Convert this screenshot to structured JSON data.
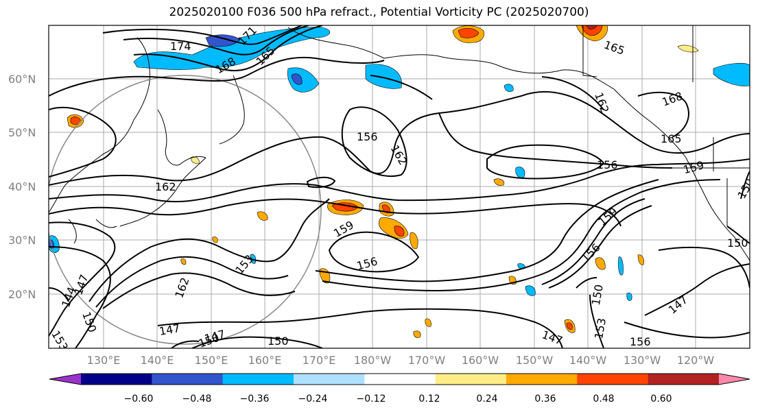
{
  "title": "2025020100 F036 500 hPa refract., Potential Vorticity PC (2025020700)",
  "lat_labels": [
    "60°N",
    "50°N",
    "40°N",
    "30°N",
    "20°N"
  ],
  "lon_labels": [
    "130°E",
    "140°E",
    "150°E",
    "160°E",
    "170°E",
    "180°W",
    "170°W",
    "160°W",
    "150°W",
    "140°W",
    "130°W",
    "120°W"
  ],
  "contour_labels": [
    "174",
    "171",
    "168",
    "165",
    "165",
    "162",
    "168",
    "165",
    "162",
    "162",
    "156",
    "159",
    "159",
    "159",
    "156",
    "156",
    "153",
    "153",
    "150",
    "150",
    "147",
    "147",
    "147",
    "150",
    "150",
    "144",
    "147",
    "150",
    "156",
    "150",
    "147",
    "153",
    "156",
    "162"
  ],
  "colorbar": {
    "colors": [
      "#9933cc",
      "#000088",
      "#3355cc",
      "#00bbff",
      "#b0e0ff",
      "#ffffff",
      "#ffee88",
      "#ffaa00",
      "#ff4400",
      "#b22222",
      "#ff88aa"
    ],
    "ticks": [
      "−0.60",
      "−0.48",
      "−0.36",
      "−0.24",
      "−0.12",
      "0.12",
      "0.24",
      "0.36",
      "0.48",
      "0.60"
    ]
  }
}
